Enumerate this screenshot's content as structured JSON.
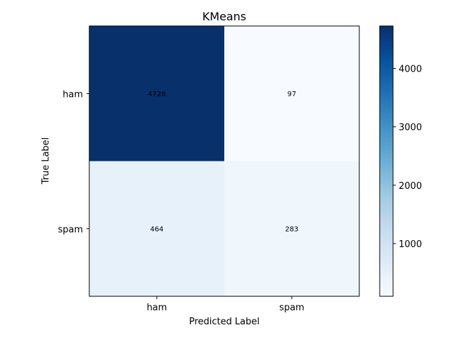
{
  "chart_data": {
    "type": "heatmap",
    "title": "KMeans",
    "xlabel": "Predicted Label",
    "ylabel": "True Label",
    "x_categories": [
      "ham",
      "spam"
    ],
    "y_categories": [
      "ham",
      "spam"
    ],
    "values": [
      [
        4728,
        97
      ],
      [
        464,
        283
      ]
    ],
    "colormap": "Blues",
    "colorbar": {
      "range": [
        97,
        4728
      ],
      "ticks": [
        1000,
        2000,
        3000,
        4000
      ],
      "tick_labels": [
        "1000",
        "2000",
        "3000",
        "4000"
      ]
    }
  }
}
